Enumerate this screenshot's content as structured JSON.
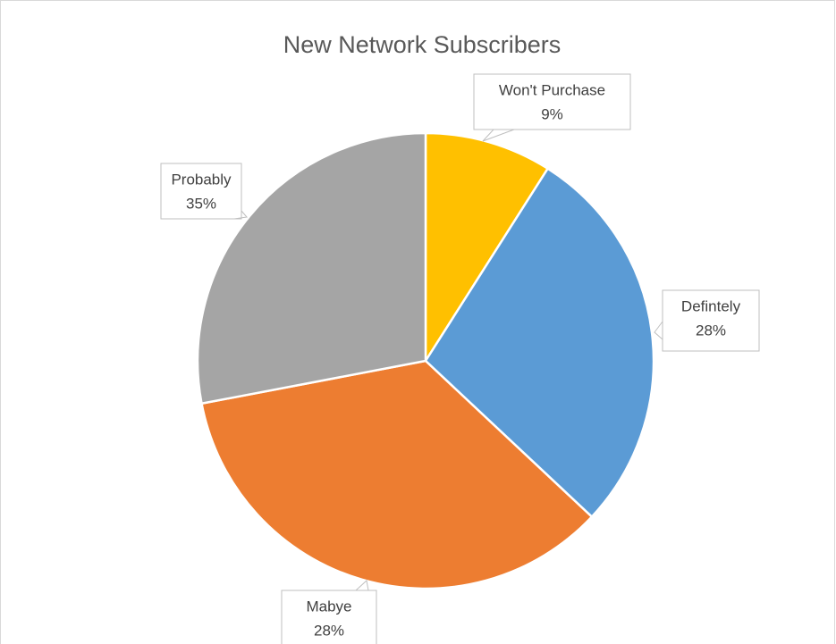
{
  "chart_data": {
    "type": "pie",
    "title": "New Network Subscribers",
    "categories": [
      "Won't Purchase",
      "Defintely",
      "Probably",
      "Mabye"
    ],
    "values": [
      9,
      28,
      35,
      28
    ],
    "value_labels": [
      "9%",
      "28%",
      "35%",
      "28%"
    ],
    "colors": [
      "#ffc000",
      "#5b9bd5",
      "#ed7d31",
      "#a5a5a5"
    ]
  }
}
